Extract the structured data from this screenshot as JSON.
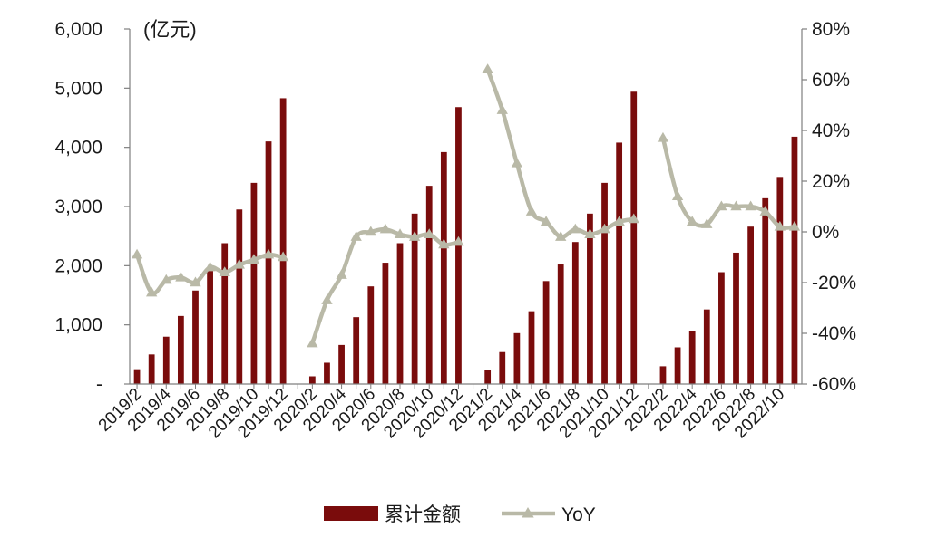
{
  "chart_data": {
    "type": "bar+line",
    "unit_label": "(亿元)",
    "legend_position": "bottom",
    "grid": false,
    "colors": {
      "bar": "#7a0c0c",
      "line": "#b9b9a7",
      "axis": "#7f7f7f"
    },
    "x": [
      "2019/2",
      "2019/3",
      "2019/4",
      "2019/5",
      "2019/6",
      "2019/7",
      "2019/8",
      "2019/9",
      "2019/10",
      "2019/11",
      "2019/12",
      "2020/1",
      "2020/2",
      "2020/3",
      "2020/4",
      "2020/5",
      "2020/6",
      "2020/7",
      "2020/8",
      "2020/9",
      "2020/10",
      "2020/11",
      "2020/12",
      "2021/1",
      "2021/2",
      "2021/3",
      "2021/4",
      "2021/5",
      "2021/6",
      "2021/7",
      "2021/8",
      "2021/9",
      "2021/10",
      "2021/11",
      "2021/12",
      "2022/1",
      "2022/2",
      "2022/3",
      "2022/4",
      "2022/5",
      "2022/6",
      "2022/7",
      "2022/8",
      "2022/9",
      "2022/10",
      "2022/11"
    ],
    "x_tick_labels": [
      "2019/2",
      "2019/4",
      "2019/6",
      "2019/8",
      "2019/10",
      "2019/12",
      "2020/2",
      "2020/4",
      "2020/6",
      "2020/8",
      "2020/10",
      "2020/12",
      "2021/2",
      "2021/4",
      "2021/6",
      "2021/8",
      "2021/10",
      "2021/12",
      "2022/2",
      "2022/4",
      "2022/6",
      "2022/8",
      "2022/10"
    ],
    "y_left": {
      "range": [
        0,
        6000
      ],
      "ticks": [
        0,
        1000,
        2000,
        3000,
        4000,
        5000,
        6000
      ],
      "tick_labels": [
        "-",
        "1,000",
        "2,000",
        "3,000",
        "4,000",
        "5,000",
        "6,000"
      ]
    },
    "y_right": {
      "range": [
        -60,
        80
      ],
      "ticks": [
        -60,
        -40,
        -20,
        0,
        20,
        40,
        60,
        80
      ],
      "tick_labels": [
        "-60%",
        "-40%",
        "-20%",
        "0%",
        "20%",
        "40%",
        "60%",
        "80%"
      ]
    },
    "series": [
      {
        "name": "累计金额",
        "type": "bar",
        "axis": "left",
        "values": [
          250,
          500,
          800,
          1150,
          1580,
          1960,
          2380,
          2950,
          3400,
          4100,
          4830,
          null,
          130,
          360,
          660,
          1130,
          1650,
          2050,
          2380,
          2880,
          3350,
          3920,
          4680,
          null,
          230,
          540,
          860,
          1230,
          1740,
          2020,
          2400,
          2880,
          3400,
          4080,
          4940,
          null,
          300,
          620,
          900,
          1260,
          1890,
          2220,
          2660,
          3140,
          3500,
          4180
        ]
      },
      {
        "name": "YoY",
        "type": "line",
        "axis": "right",
        "marker": "triangle",
        "values": [
          -9,
          -24,
          -19,
          -18,
          -20,
          -14,
          -16,
          -13,
          -11,
          -9,
          -10,
          null,
          -44,
          -27,
          -17,
          -2,
          0,
          1,
          -1,
          -2,
          -1,
          -5,
          -4,
          null,
          64,
          48,
          27,
          8,
          4,
          -2,
          1,
          -1,
          1,
          4,
          5,
          null,
          37,
          14,
          4,
          3,
          10,
          10,
          10,
          8,
          2,
          2
        ]
      }
    ]
  }
}
